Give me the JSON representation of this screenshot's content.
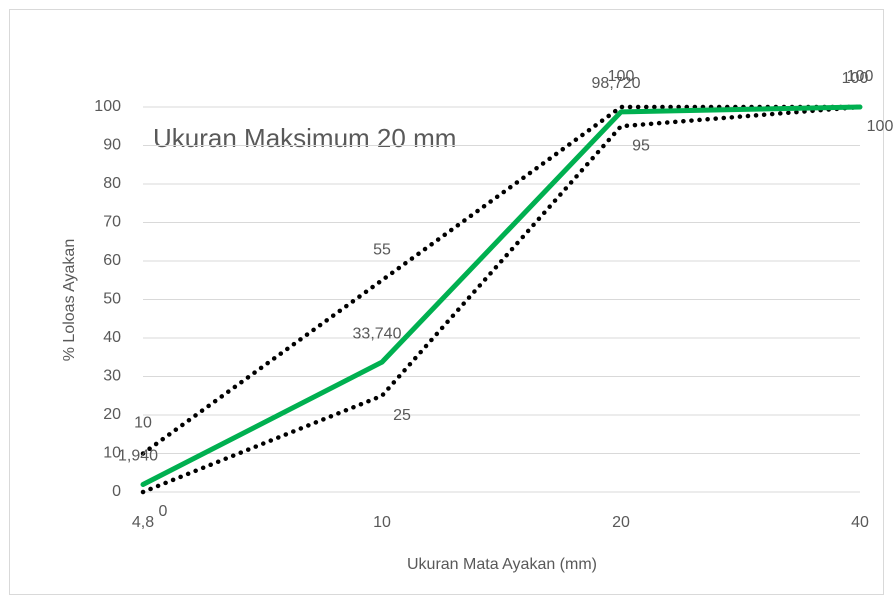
{
  "chart_data": {
    "type": "line",
    "annotation": "Ukuran Maksimum 20 mm",
    "x_label": "Ukuran Mata Ayakan (mm)",
    "y_label": "% Loloas Ayakan",
    "categories": [
      "4,8",
      "10",
      "20",
      "40"
    ],
    "series": [
      {
        "color": "#000000",
        "style": "dotted",
        "values": [
          10,
          55,
          100,
          100
        ]
      },
      {
        "color": "#000000",
        "style": "dotted",
        "values": [
          0,
          25,
          95,
          100
        ]
      },
      {
        "color": "#00b050",
        "style": "solid",
        "values": [
          1.94,
          33.74,
          98.72,
          100
        ],
        "value_labels": [
          "1,940",
          "33,740",
          "98,720",
          "100"
        ]
      }
    ],
    "ylim": [
      0,
      100
    ],
    "yticks": [
      0,
      10,
      20,
      30,
      40,
      50,
      60,
      70,
      80,
      90,
      100
    ],
    "grid": true
  }
}
